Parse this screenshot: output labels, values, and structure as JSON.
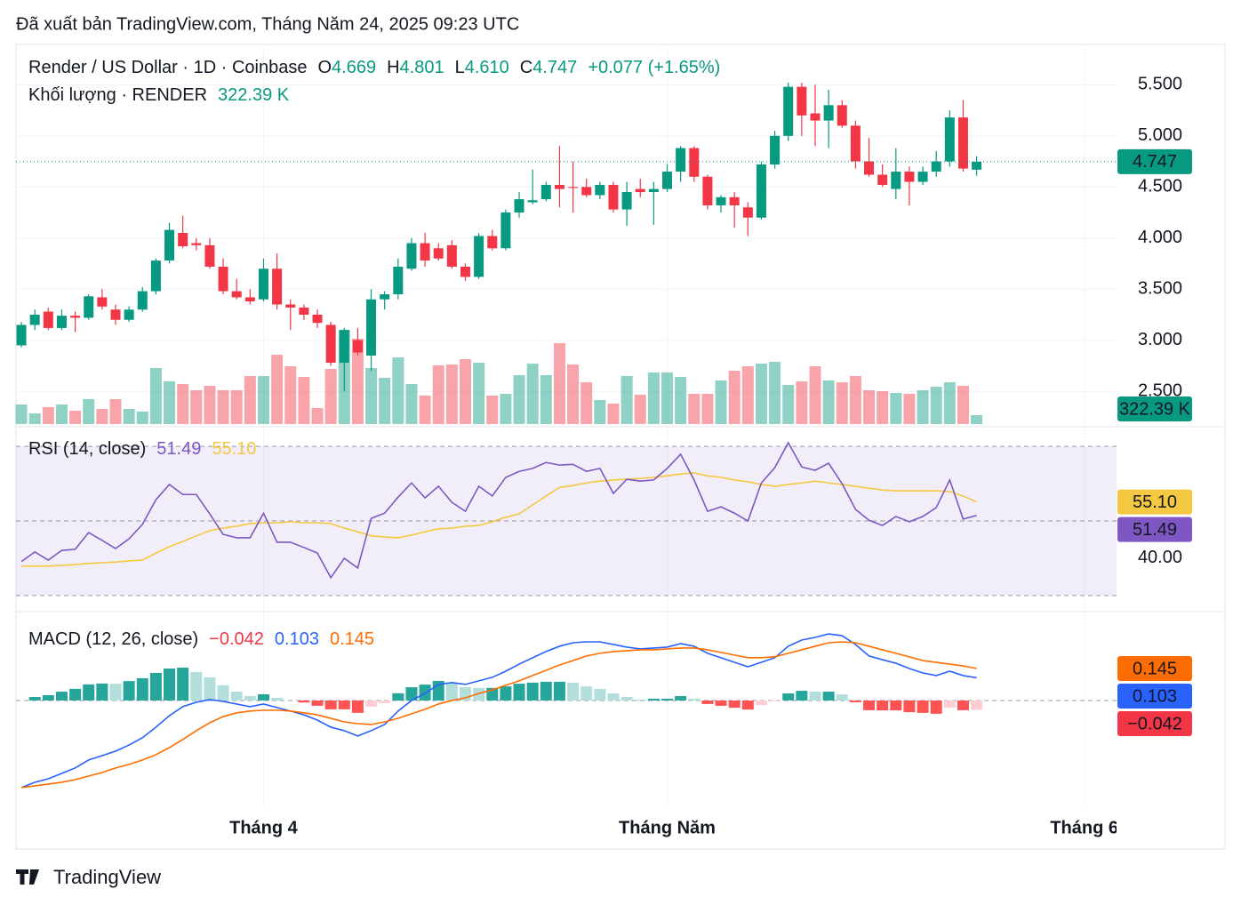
{
  "header": "Đã xuất bản TradingView.com, Tháng Năm 24, 2025 09:23 UTC",
  "footer": "TradingView",
  "chart_data": {
    "type": "candlestick",
    "legend": {
      "symbol": "Render / US Dollar · 1D · Coinbase",
      "fields": [
        {
          "key": "O",
          "label": "4.669"
        },
        {
          "key": "H",
          "label": "4.801"
        },
        {
          "key": "L",
          "label": "4.610"
        },
        {
          "key": "C",
          "label": "4.747"
        }
      ],
      "change": "+0.077 (+1.65%)"
    },
    "up_color": "#089981",
    "down_color": "#f23645",
    "candles": {
      "open": [
        2.95,
        3.15,
        3.28,
        3.12,
        3.24,
        3.22,
        3.42,
        3.3,
        3.2,
        3.3,
        3.48,
        3.78,
        4.05,
        3.95,
        3.93,
        3.72,
        3.48,
        3.42,
        3.4,
        3.7,
        3.35,
        3.32,
        3.25,
        3.15,
        2.78,
        3.0,
        2.85,
        3.4,
        3.45,
        3.7,
        3.95,
        3.9,
        3.93,
        3.72,
        3.62,
        4.02,
        3.9,
        4.25,
        4.35,
        4.38,
        4.52,
        4.5,
        4.5,
        4.42,
        4.52,
        4.28,
        4.48,
        4.45,
        4.48,
        4.65,
        4.88,
        4.6,
        4.32,
        4.4,
        4.3,
        4.2,
        4.72,
        5.0,
        5.48,
        5.22,
        5.15,
        5.3,
        5.1,
        4.75,
        4.62,
        4.48,
        4.65,
        4.55,
        4.65,
        4.75,
        5.18,
        4.669
      ],
      "high": [
        3.18,
        3.3,
        3.32,
        3.3,
        3.28,
        3.45,
        3.5,
        3.35,
        3.33,
        3.52,
        3.8,
        4.15,
        4.22,
        4.0,
        4.0,
        3.8,
        3.6,
        3.5,
        3.8,
        3.85,
        3.4,
        3.35,
        3.3,
        3.18,
        3.12,
        3.12,
        3.5,
        3.48,
        3.8,
        4.0,
        4.05,
        3.95,
        3.98,
        3.75,
        4.05,
        4.08,
        4.28,
        4.45,
        4.67,
        4.55,
        4.9,
        4.75,
        4.58,
        4.55,
        4.55,
        4.55,
        4.58,
        4.55,
        4.72,
        4.9,
        4.9,
        4.62,
        4.42,
        4.45,
        4.35,
        4.75,
        5.05,
        5.52,
        5.52,
        5.5,
        5.45,
        5.35,
        5.15,
        4.98,
        4.72,
        4.88,
        4.7,
        4.7,
        4.85,
        5.25,
        5.35,
        4.801
      ],
      "low": [
        2.93,
        3.1,
        3.1,
        3.1,
        3.08,
        3.2,
        3.3,
        3.15,
        3.18,
        3.28,
        3.45,
        3.75,
        3.9,
        3.88,
        3.7,
        3.45,
        3.4,
        3.35,
        3.38,
        3.3,
        3.1,
        3.2,
        3.12,
        2.75,
        2.5,
        2.85,
        2.7,
        3.3,
        3.4,
        3.68,
        3.72,
        3.78,
        3.7,
        3.58,
        3.6,
        3.88,
        3.88,
        4.2,
        4.33,
        4.36,
        4.3,
        4.25,
        4.4,
        4.38,
        4.25,
        4.12,
        4.4,
        4.13,
        4.45,
        4.55,
        4.55,
        4.28,
        4.25,
        4.1,
        4.02,
        4.18,
        4.68,
        4.95,
        5.0,
        4.9,
        4.88,
        5.08,
        4.68,
        4.6,
        4.5,
        4.38,
        4.32,
        4.52,
        4.6,
        4.7,
        4.65,
        4.61
      ],
      "close": [
        3.15,
        3.25,
        3.12,
        3.24,
        3.22,
        3.43,
        3.33,
        3.2,
        3.3,
        3.48,
        3.78,
        4.08,
        3.92,
        3.93,
        3.72,
        3.48,
        3.42,
        3.38,
        3.7,
        3.35,
        3.32,
        3.25,
        3.17,
        2.78,
        3.1,
        2.88,
        3.4,
        3.45,
        3.72,
        3.95,
        3.78,
        3.8,
        3.72,
        3.62,
        4.02,
        3.9,
        4.25,
        4.38,
        4.37,
        4.52,
        4.48,
        4.49,
        4.42,
        4.52,
        4.28,
        4.45,
        4.45,
        4.48,
        4.65,
        4.88,
        4.6,
        4.32,
        4.4,
        4.32,
        4.2,
        4.72,
        5.0,
        5.48,
        5.2,
        5.15,
        5.3,
        5.1,
        4.75,
        4.62,
        4.52,
        4.65,
        4.55,
        4.65,
        4.75,
        5.18,
        4.68,
        4.747
      ]
    },
    "last_price_label": "4.747",
    "ylim": [
      2.18,
      5.79
    ],
    "yticks": [
      {
        "value": 2.5,
        "label": "2.500"
      },
      {
        "value": 3,
        "label": "3.000"
      },
      {
        "value": 3.5,
        "label": "3.500"
      },
      {
        "value": 4,
        "label": "4.000"
      },
      {
        "value": 4.5,
        "label": "4.500"
      },
      {
        "value": 5,
        "label": "5.000"
      },
      {
        "value": 5.5,
        "label": "5.500"
      }
    ],
    "xlim": [
      -0.4,
      81.4
    ],
    "xticks": [
      {
        "value": 18,
        "label": "Tháng 4"
      },
      {
        "value": 48,
        "label": "Tháng Năm"
      },
      {
        "value": 79,
        "label": "Tháng 6"
      }
    ],
    "grid": true,
    "volume": {
      "name": "Khối lượng · RENDER",
      "last_label": "322.39 K",
      "values": [
        709000,
        387000,
        612000,
        709000,
        484000,
        902000,
        548000,
        902000,
        548000,
        451000,
        2030000,
        1547000,
        1450000,
        1225000,
        1386000,
        1225000,
        1225000,
        1740000,
        1740000,
        2513000,
        2094000,
        1708000,
        580000,
        1998000,
        3416000,
        3094000,
        2030000,
        1676000,
        2417000,
        1450000,
        1031000,
        2127000,
        2159000,
        2352000,
        2223000,
        1031000,
        1096000,
        1772000,
        2191000,
        1772000,
        2932000,
        2159000,
        1515000,
        870000,
        741000,
        1740000,
        1063000,
        1869000,
        1869000,
        1708000,
        1096000,
        1096000,
        1579000,
        1933000,
        2094000,
        2191000,
        2255000,
        1418000,
        1547000,
        2094000,
        1579000,
        1515000,
        1740000,
        1225000,
        1193000,
        1128000,
        1096000,
        1225000,
        1354000,
        1515000,
        1386000,
        322390
      ]
    },
    "rsi": {
      "title": "RSI (14, close)",
      "ylim": [
        26.4,
        72.9
      ],
      "yticks": [
        {
          "value": 40,
          "label": "40.00"
        }
      ],
      "levels": [
        70,
        50,
        30
      ],
      "series": [
        {
          "color": "#7e57c2",
          "last_label": "51.49",
          "values": [
            39.1,
            41.7,
            39.5,
            42.1,
            42.4,
            46.9,
            44.8,
            42.6,
            45.2,
            49.1,
            55.7,
            59.8,
            57.1,
            57.1,
            51.9,
            46.4,
            45.5,
            45.5,
            52.1,
            44.3,
            44.3,
            42.9,
            41.4,
            34.8,
            40.0,
            37.4,
            50.7,
            52.1,
            56.4,
            60.2,
            56.2,
            59.3,
            55.0,
            52.6,
            59.3,
            56.7,
            61.7,
            63.3,
            64.1,
            65.7,
            65.0,
            65.2,
            63.3,
            64.1,
            57.4,
            61.2,
            60.7,
            61.0,
            64.1,
            67.9,
            61.0,
            52.6,
            53.8,
            52.1,
            50.0,
            60.2,
            64.3,
            71.0,
            64.5,
            63.6,
            65.5,
            60.0,
            53.1,
            50.2,
            48.8,
            51.2,
            49.8,
            51.2,
            53.6,
            61.0,
            50.5,
            51.49
          ]
        },
        {
          "color": "#f5c842",
          "last_label": "55.10",
          "values": [
            37.9,
            37.9,
            37.9,
            38.1,
            38.3,
            38.6,
            38.8,
            39.0,
            39.3,
            39.5,
            41.4,
            43.1,
            44.5,
            46.0,
            47.4,
            48.1,
            48.6,
            49.3,
            49.5,
            49.5,
            49.8,
            49.5,
            49.5,
            49.3,
            48.1,
            47.1,
            46.0,
            45.7,
            45.5,
            46.2,
            47.1,
            47.9,
            48.1,
            48.6,
            48.8,
            49.8,
            51.0,
            51.9,
            54.3,
            56.7,
            59.0,
            59.5,
            60.2,
            60.7,
            61.0,
            61.2,
            61.4,
            61.7,
            62.1,
            62.6,
            62.9,
            62.1,
            61.7,
            61.0,
            60.5,
            59.8,
            59.3,
            59.8,
            60.2,
            60.7,
            60.2,
            59.8,
            59.3,
            58.8,
            58.3,
            58.1,
            58.1,
            58.1,
            58.1,
            57.9,
            56.7,
            55.1
          ]
        }
      ]
    },
    "macd": {
      "title": "MACD (12, 26, close)",
      "ylim": [
        -0.472,
        0.395
      ],
      "levels": [
        0
      ],
      "histogram": {
        "last_label": "−0.042",
        "colors": [
          "#26a69a",
          "#b2dfdb",
          "#ff5252",
          "#ffcdd2"
        ],
        "values": [
          0.0,
          0.016,
          0.024,
          0.04,
          0.053,
          0.073,
          0.077,
          0.076,
          0.088,
          0.101,
          0.125,
          0.145,
          0.149,
          0.129,
          0.105,
          0.069,
          0.04,
          0.02,
          0.028,
          0.012,
          0.0,
          -0.009,
          -0.024,
          -0.04,
          -0.04,
          -0.056,
          -0.028,
          -0.012,
          0.033,
          0.06,
          0.072,
          0.089,
          0.081,
          0.061,
          0.057,
          0.057,
          0.064,
          0.076,
          0.081,
          0.085,
          0.085,
          0.081,
          0.064,
          0.052,
          0.032,
          0.016,
          0.004,
          0.008,
          0.008,
          0.02,
          0.008,
          -0.016,
          -0.024,
          -0.033,
          -0.041,
          -0.021,
          -0.004,
          0.032,
          0.044,
          0.04,
          0.04,
          0.028,
          -0.008,
          -0.044,
          -0.045,
          -0.045,
          -0.053,
          -0.056,
          -0.06,
          -0.032,
          -0.044,
          -0.042
        ]
      },
      "series": [
        {
          "color": "#2962ff",
          "last_label": "0.103",
          "values": [
            -0.395,
            -0.371,
            -0.355,
            -0.331,
            -0.306,
            -0.27,
            -0.25,
            -0.23,
            -0.202,
            -0.169,
            -0.121,
            -0.069,
            -0.028,
            -0.008,
            0.004,
            -0.004,
            -0.016,
            -0.028,
            -0.016,
            -0.032,
            -0.048,
            -0.065,
            -0.089,
            -0.121,
            -0.137,
            -0.161,
            -0.137,
            -0.109,
            -0.048,
            0.0,
            0.032,
            0.073,
            0.081,
            0.073,
            0.089,
            0.105,
            0.133,
            0.165,
            0.194,
            0.222,
            0.246,
            0.262,
            0.266,
            0.266,
            0.254,
            0.242,
            0.234,
            0.238,
            0.242,
            0.258,
            0.246,
            0.214,
            0.194,
            0.173,
            0.153,
            0.173,
            0.194,
            0.246,
            0.274,
            0.286,
            0.302,
            0.294,
            0.254,
            0.202,
            0.185,
            0.169,
            0.145,
            0.125,
            0.113,
            0.133,
            0.113,
            0.103
          ]
        },
        {
          "color": "#ff6d00",
          "last_label": "0.145",
          "values": [
            -0.395,
            -0.387,
            -0.379,
            -0.371,
            -0.359,
            -0.343,
            -0.327,
            -0.306,
            -0.29,
            -0.27,
            -0.246,
            -0.214,
            -0.177,
            -0.137,
            -0.101,
            -0.073,
            -0.056,
            -0.048,
            -0.044,
            -0.044,
            -0.048,
            -0.056,
            -0.065,
            -0.081,
            -0.097,
            -0.105,
            -0.109,
            -0.097,
            -0.081,
            -0.06,
            -0.04,
            -0.016,
            0.0,
            0.012,
            0.032,
            0.048,
            0.069,
            0.089,
            0.113,
            0.137,
            0.161,
            0.181,
            0.202,
            0.214,
            0.222,
            0.226,
            0.23,
            0.23,
            0.234,
            0.238,
            0.238,
            0.23,
            0.218,
            0.206,
            0.194,
            0.194,
            0.198,
            0.214,
            0.23,
            0.246,
            0.262,
            0.266,
            0.262,
            0.246,
            0.23,
            0.214,
            0.198,
            0.181,
            0.173,
            0.165,
            0.157,
            0.145
          ]
        }
      ]
    }
  }
}
